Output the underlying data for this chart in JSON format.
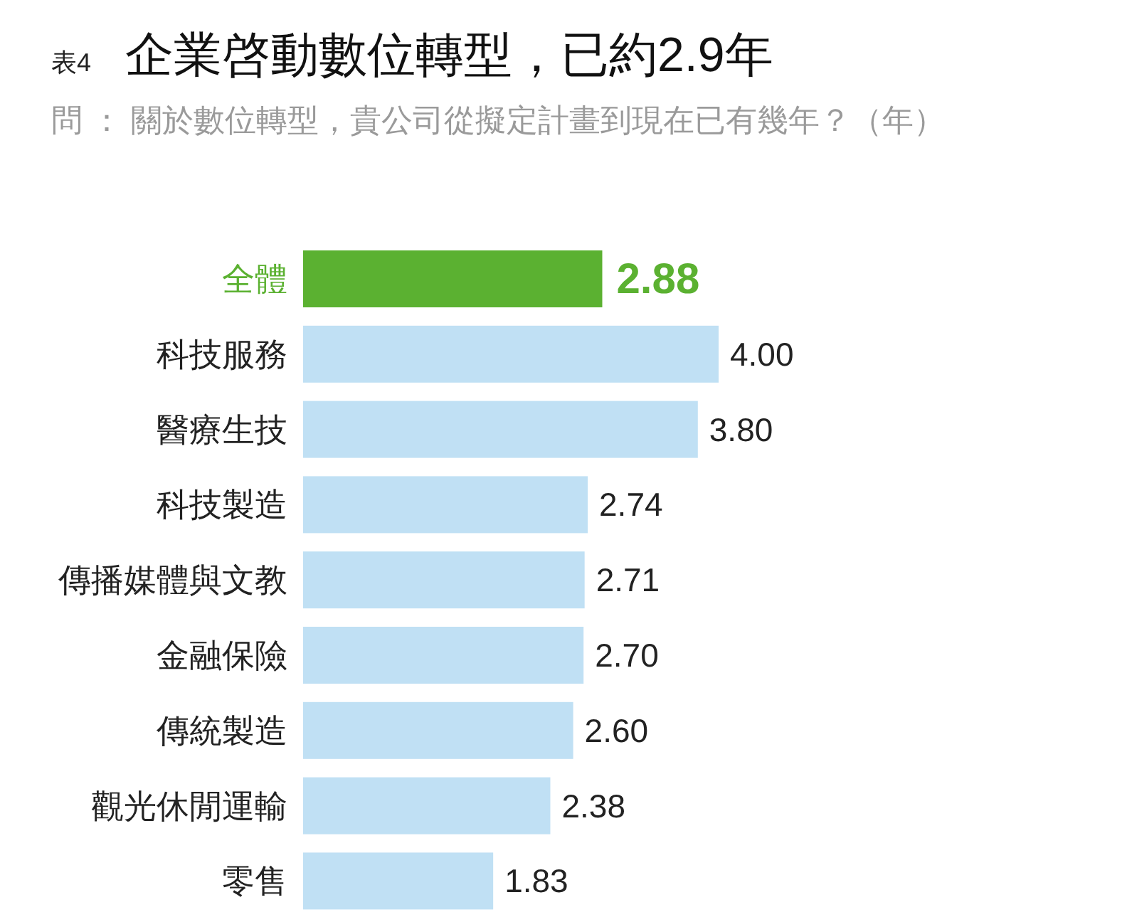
{
  "chart_data": {
    "type": "bar",
    "orientation": "horizontal",
    "title": "企業啓動數位轉型，已約2.9年",
    "subtitle": "問 ： 關於數位轉型，貴公司從擬定計畫到現在已有幾年？（年）",
    "annotations": [
      "表4"
    ],
    "categories": [
      "全體",
      "科技服務",
      "醫療生技",
      "科技製造",
      "傳播媒體與文教",
      "金融保險",
      "傳統製造",
      "觀光休閒運輸",
      "零售"
    ],
    "values": [
      2.88,
      4.0,
      3.8,
      2.74,
      2.71,
      2.7,
      2.6,
      2.38,
      1.83
    ],
    "value_labels": [
      "2.88",
      "4.00",
      "3.80",
      "2.74",
      "2.71",
      "2.70",
      "2.60",
      "2.38",
      "1.83"
    ],
    "colors": [
      "#5bb131",
      "#c0e0f4",
      "#c0e0f4",
      "#c0e0f4",
      "#c0e0f4",
      "#c0e0f4",
      "#c0e0f4",
      "#c0e0f4",
      "#c0e0f4"
    ]
  }
}
